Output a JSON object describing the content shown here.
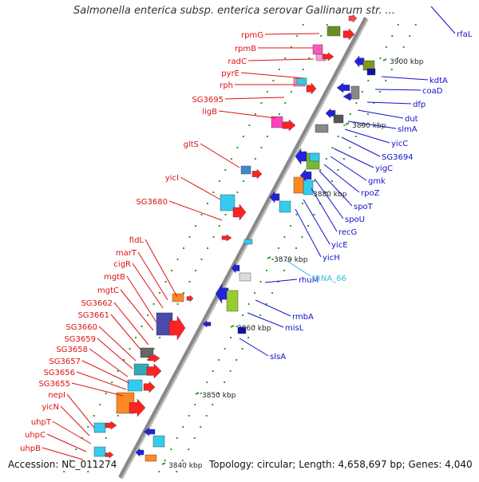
{
  "title": "Salmonella enterica subsp. enterica serovar Gallinarum str. ...",
  "accession": "Accession: NC_011274",
  "summary": "Topology: circular; Length: 4,658,697 bp; Genes: 4,040",
  "scale_labels": [
    "3900 kbp",
    "3890 kbp",
    "3880 kbp",
    "3870 kbp",
    "3860 kbp",
    "3850 kbp",
    "3840 kbp"
  ],
  "left_genes": [
    "rpmG",
    "rpmB",
    "radC",
    "pyrE",
    "rph",
    "SG3695",
    "ligB",
    "gltS",
    "yicI",
    "SG3680",
    "fidL",
    "marT",
    "cigR",
    "mgtB",
    "mgtC",
    "SG3662",
    "SG3661",
    "SG3660",
    "SG3659",
    "SG3658",
    "SG3657",
    "SG3656",
    "SG3655",
    "nepI",
    "yicN",
    "uhpT",
    "uhpC",
    "uhpB"
  ],
  "right_genes": [
    "rfaL",
    "kdtA",
    "coaD",
    "dfp",
    "dut",
    "slmA",
    "yicC",
    "SG3694",
    "yigC",
    "gmk",
    "rpoZ",
    "spoT",
    "spoU",
    "recG",
    "yicE",
    "yicH",
    "rhuM",
    "rmbA",
    "misL",
    "slsA"
  ],
  "rna_labels": [
    "tRNA_66"
  ],
  "colors": {
    "left_label": "#dd1111",
    "right_label": "#1111cc",
    "rna_label": "#33bbdd",
    "backbone": "#888888",
    "tick": "#2a9a2a"
  }
}
